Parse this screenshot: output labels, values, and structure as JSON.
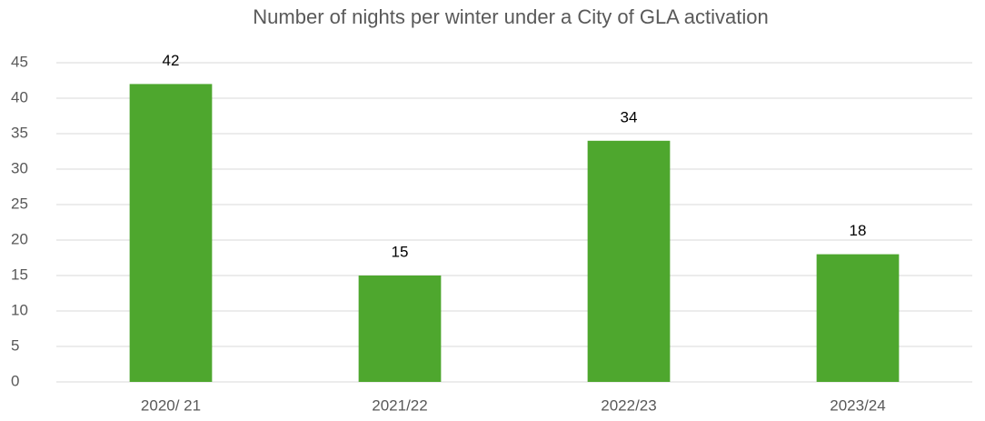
{
  "chart_data": {
    "type": "bar",
    "title": "Number of nights per winter under a City of GLA activation",
    "categories": [
      "2020/ 21",
      "2021/22",
      "2022/23",
      "2023/24"
    ],
    "values": [
      42,
      15,
      34,
      18
    ],
    "color": "#4ea72e",
    "ylim": [
      0,
      45
    ],
    "yticks": [
      0,
      5,
      10,
      15,
      20,
      25,
      30,
      35,
      40,
      45
    ],
    "grid": true,
    "data_labels": true
  }
}
